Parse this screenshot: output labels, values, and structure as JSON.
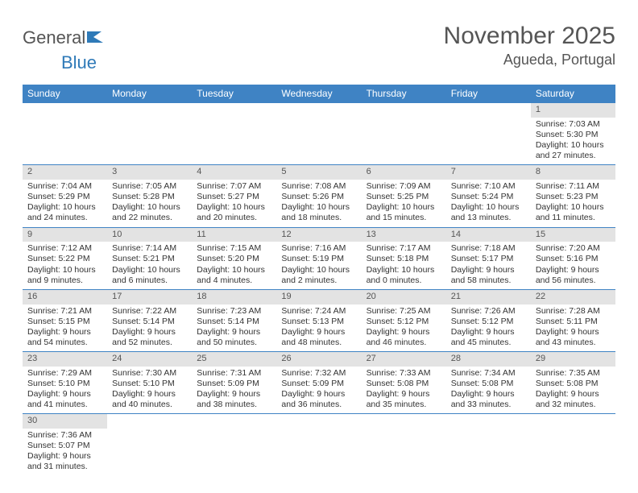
{
  "logo": {
    "part1": "General",
    "part2": "Blue"
  },
  "title": "November 2025",
  "location": "Agueda, Portugal",
  "colors": {
    "header_bg": "#3f83c4",
    "header_text": "#ffffff",
    "daynum_bg": "#e3e3e3",
    "daynum_text": "#555555",
    "border": "#3f83c4",
    "body_text": "#333333",
    "logo_gray": "#555555",
    "logo_blue": "#2f7ab8"
  },
  "dayHeaders": [
    "Sunday",
    "Monday",
    "Tuesday",
    "Wednesday",
    "Thursday",
    "Friday",
    "Saturday"
  ],
  "startWeekdayIndex": 6,
  "daysInMonth": 30,
  "days": {
    "1": {
      "sunrise": "7:03 AM",
      "sunset": "5:30 PM",
      "daylight": "10 hours and 27 minutes."
    },
    "2": {
      "sunrise": "7:04 AM",
      "sunset": "5:29 PM",
      "daylight": "10 hours and 24 minutes."
    },
    "3": {
      "sunrise": "7:05 AM",
      "sunset": "5:28 PM",
      "daylight": "10 hours and 22 minutes."
    },
    "4": {
      "sunrise": "7:07 AM",
      "sunset": "5:27 PM",
      "daylight": "10 hours and 20 minutes."
    },
    "5": {
      "sunrise": "7:08 AM",
      "sunset": "5:26 PM",
      "daylight": "10 hours and 18 minutes."
    },
    "6": {
      "sunrise": "7:09 AM",
      "sunset": "5:25 PM",
      "daylight": "10 hours and 15 minutes."
    },
    "7": {
      "sunrise": "7:10 AM",
      "sunset": "5:24 PM",
      "daylight": "10 hours and 13 minutes."
    },
    "8": {
      "sunrise": "7:11 AM",
      "sunset": "5:23 PM",
      "daylight": "10 hours and 11 minutes."
    },
    "9": {
      "sunrise": "7:12 AM",
      "sunset": "5:22 PM",
      "daylight": "10 hours and 9 minutes."
    },
    "10": {
      "sunrise": "7:14 AM",
      "sunset": "5:21 PM",
      "daylight": "10 hours and 6 minutes."
    },
    "11": {
      "sunrise": "7:15 AM",
      "sunset": "5:20 PM",
      "daylight": "10 hours and 4 minutes."
    },
    "12": {
      "sunrise": "7:16 AM",
      "sunset": "5:19 PM",
      "daylight": "10 hours and 2 minutes."
    },
    "13": {
      "sunrise": "7:17 AM",
      "sunset": "5:18 PM",
      "daylight": "10 hours and 0 minutes."
    },
    "14": {
      "sunrise": "7:18 AM",
      "sunset": "5:17 PM",
      "daylight": "9 hours and 58 minutes."
    },
    "15": {
      "sunrise": "7:20 AM",
      "sunset": "5:16 PM",
      "daylight": "9 hours and 56 minutes."
    },
    "16": {
      "sunrise": "7:21 AM",
      "sunset": "5:15 PM",
      "daylight": "9 hours and 54 minutes."
    },
    "17": {
      "sunrise": "7:22 AM",
      "sunset": "5:14 PM",
      "daylight": "9 hours and 52 minutes."
    },
    "18": {
      "sunrise": "7:23 AM",
      "sunset": "5:14 PM",
      "daylight": "9 hours and 50 minutes."
    },
    "19": {
      "sunrise": "7:24 AM",
      "sunset": "5:13 PM",
      "daylight": "9 hours and 48 minutes."
    },
    "20": {
      "sunrise": "7:25 AM",
      "sunset": "5:12 PM",
      "daylight": "9 hours and 46 minutes."
    },
    "21": {
      "sunrise": "7:26 AM",
      "sunset": "5:12 PM",
      "daylight": "9 hours and 45 minutes."
    },
    "22": {
      "sunrise": "7:28 AM",
      "sunset": "5:11 PM",
      "daylight": "9 hours and 43 minutes."
    },
    "23": {
      "sunrise": "7:29 AM",
      "sunset": "5:10 PM",
      "daylight": "9 hours and 41 minutes."
    },
    "24": {
      "sunrise": "7:30 AM",
      "sunset": "5:10 PM",
      "daylight": "9 hours and 40 minutes."
    },
    "25": {
      "sunrise": "7:31 AM",
      "sunset": "5:09 PM",
      "daylight": "9 hours and 38 minutes."
    },
    "26": {
      "sunrise": "7:32 AM",
      "sunset": "5:09 PM",
      "daylight": "9 hours and 36 minutes."
    },
    "27": {
      "sunrise": "7:33 AM",
      "sunset": "5:08 PM",
      "daylight": "9 hours and 35 minutes."
    },
    "28": {
      "sunrise": "7:34 AM",
      "sunset": "5:08 PM",
      "daylight": "9 hours and 33 minutes."
    },
    "29": {
      "sunrise": "7:35 AM",
      "sunset": "5:08 PM",
      "daylight": "9 hours and 32 minutes."
    },
    "30": {
      "sunrise": "7:36 AM",
      "sunset": "5:07 PM",
      "daylight": "9 hours and 31 minutes."
    }
  },
  "labels": {
    "sunrise": "Sunrise: ",
    "sunset": "Sunset: ",
    "daylight": "Daylight: "
  }
}
